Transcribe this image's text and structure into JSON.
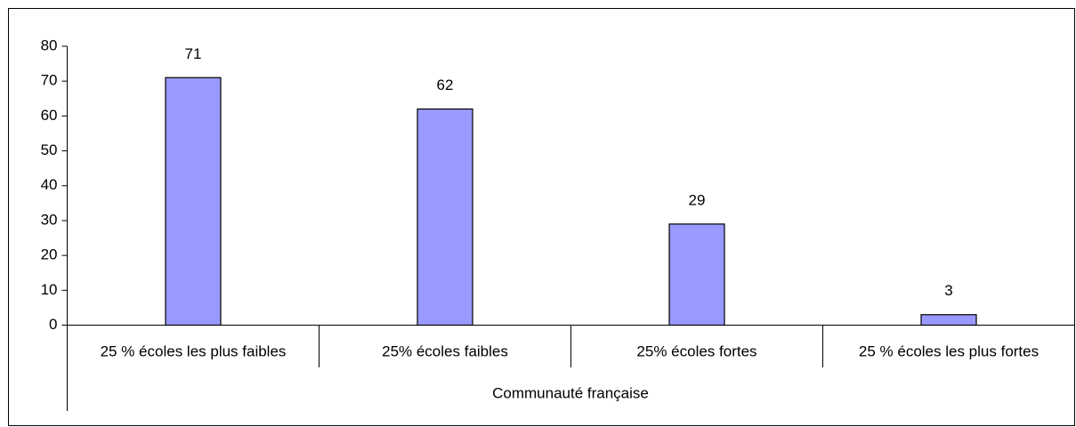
{
  "chart_data": {
    "type": "bar",
    "categories": [
      "25 % écoles les plus faibles",
      "25% écoles faibles",
      "25% écoles fortes",
      "25 % écoles les plus fortes"
    ],
    "group_label": "Communauté française",
    "values": [
      71,
      62,
      29,
      3
    ],
    "color": "#9999ff",
    "ylim": [
      0,
      80
    ],
    "yticks": [
      0,
      10,
      20,
      30,
      40,
      50,
      60,
      70,
      80
    ],
    "grid": false
  }
}
